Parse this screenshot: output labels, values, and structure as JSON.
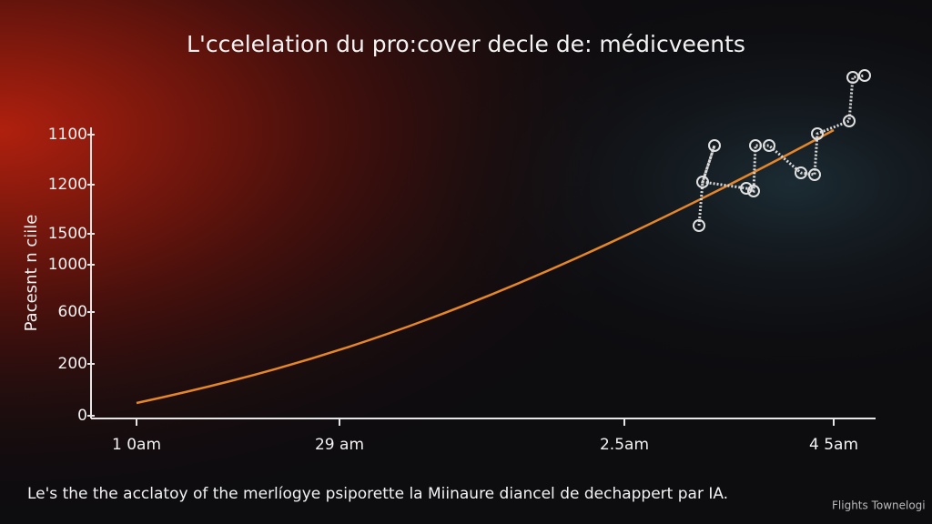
{
  "header": {
    "title": "L'ccelelation du pro:cover decle de: médicveents"
  },
  "axes": {
    "y_title": "Pacesnt n ciile",
    "y_labels": [
      "1100",
      "1200",
      "1500",
      "1000",
      "600",
      "200",
      "0"
    ],
    "x_labels": [
      "1 0am",
      "29 am",
      "2.5am",
      "4 5am"
    ]
  },
  "caption": "Le's the the acclatoy of the merlíogye psiporette la Miinaure diancel de dechappert par IA.",
  "footer": "Flights Townelogi"
}
